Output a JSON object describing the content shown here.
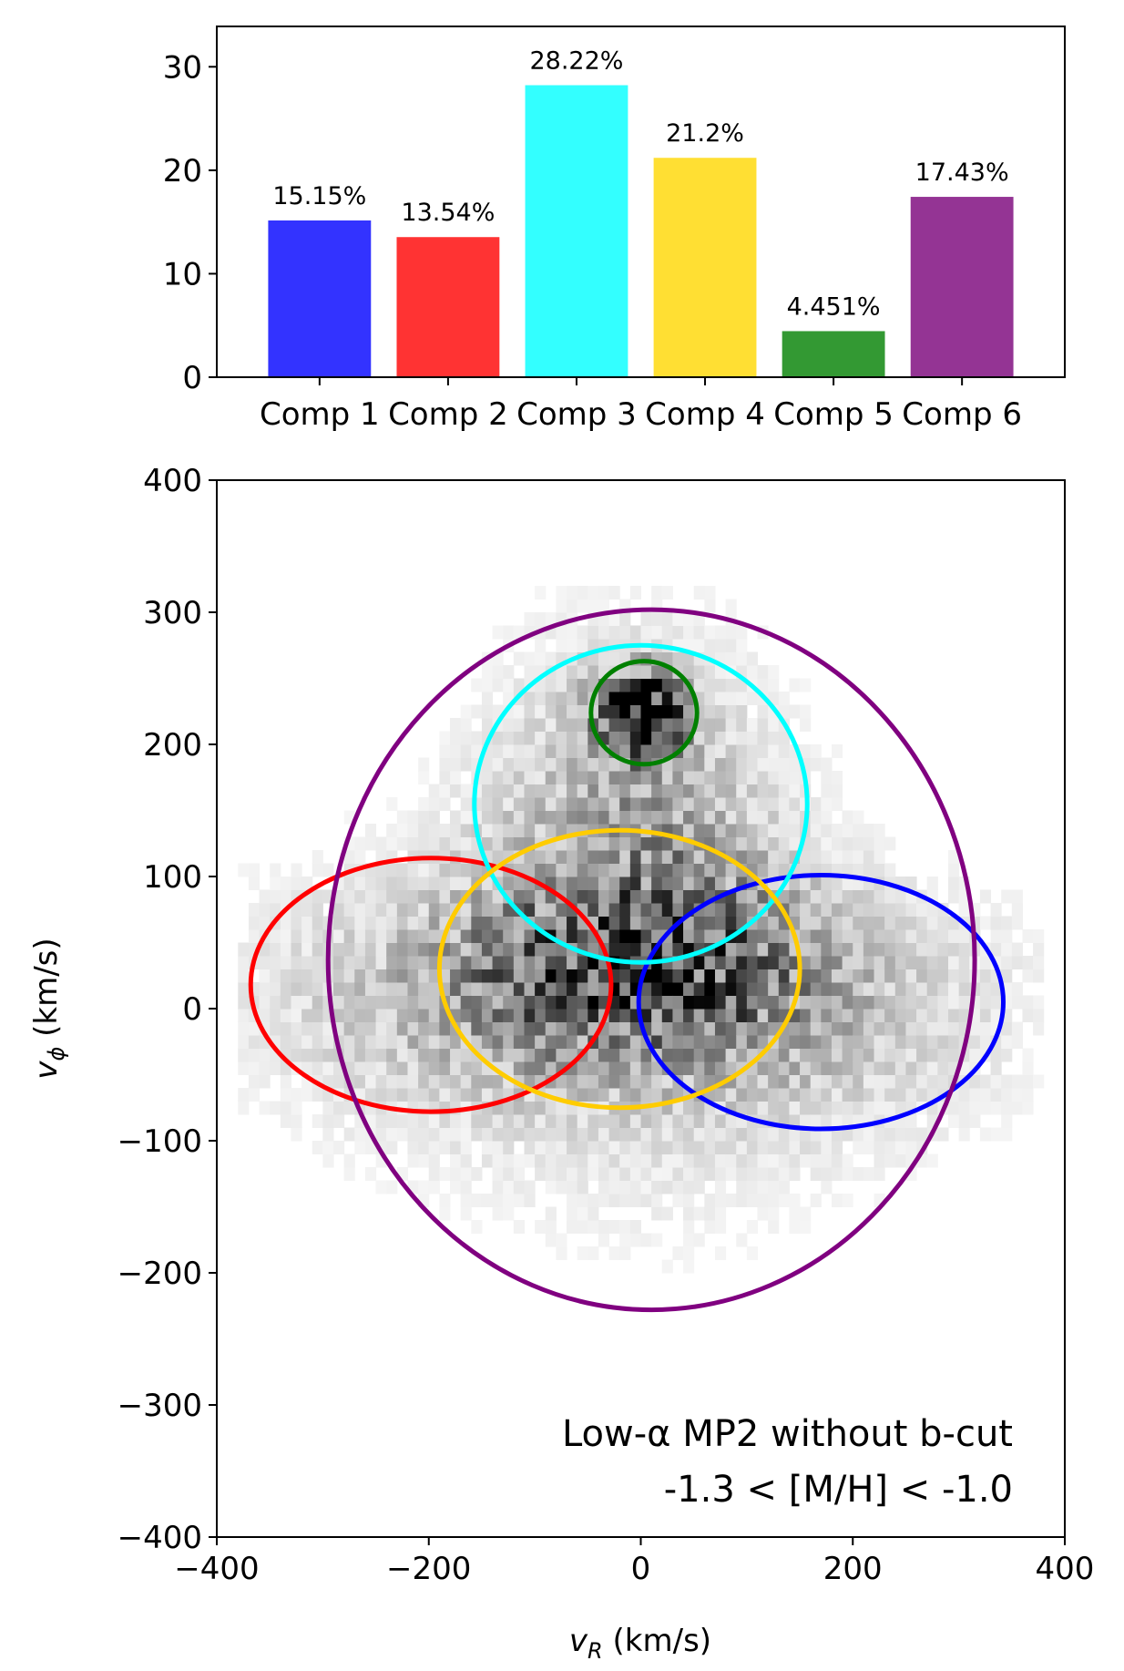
{
  "chart_data": [
    {
      "type": "bar",
      "categories": [
        "Comp 1",
        "Comp 2",
        "Comp 3",
        "Comp 4",
        "Comp 5",
        "Comp 6"
      ],
      "values": [
        15.15,
        13.54,
        28.22,
        21.2,
        4.451,
        17.43
      ],
      "data_labels": [
        "15.15%",
        "13.54%",
        "28.22%",
        "21.2%",
        "4.451%",
        "17.43%"
      ],
      "colors": [
        "#3333ff",
        "#ff3333",
        "#33ffff",
        "#ffdf33",
        "#339933",
        "#943494"
      ],
      "ylim": [
        0,
        33.9
      ],
      "yticks": [
        "0",
        "10",
        "20",
        "30"
      ],
      "ytick_values": [
        0,
        10,
        20,
        30
      ],
      "grid": false
    },
    {
      "type": "heatmap",
      "subtype": "2d-histogram with gaussian-component ellipses",
      "xlabel": "v_R (km/s)",
      "ylabel": "v_φ (km/s)",
      "xlim": [
        -400,
        400
      ],
      "ylim": [
        -400,
        400
      ],
      "xticks": [
        "−400",
        "−200",
        "0",
        "200",
        "400"
      ],
      "xtick_values": [
        -400,
        -200,
        0,
        200,
        400
      ],
      "yticks": [
        "−400",
        "−300",
        "−200",
        "−100",
        "0",
        "100",
        "200",
        "300",
        "400"
      ],
      "ytick_values": [
        -400,
        -300,
        -200,
        -100,
        0,
        100,
        200,
        300,
        400
      ],
      "colormap": "greys",
      "grid": false,
      "annotation": [
        "Low-α MP2 without b-cut",
        "-1.3 < [M/H] < -1.0"
      ],
      "annotation_placement": "bottom-right",
      "ellipses": [
        {
          "component": "Comp 1",
          "color": "#0000ff",
          "center": [
            170,
            5
          ],
          "half_width": 172,
          "half_height": 96
        },
        {
          "component": "Comp 2",
          "color": "#ff0000",
          "center": [
            -198,
            18
          ],
          "half_width": 170,
          "half_height": 96
        },
        {
          "component": "Comp 3",
          "color": "#00ffff",
          "center": [
            0,
            155
          ],
          "half_width": 157,
          "half_height": 120
        },
        {
          "component": "Comp 4",
          "color": "#ffcc00",
          "center": [
            -20,
            30
          ],
          "half_width": 170,
          "half_height": 105
        },
        {
          "component": "Comp 5",
          "color": "#008000",
          "center": [
            3,
            224
          ],
          "half_width": 50,
          "half_height": 39
        },
        {
          "component": "Comp 6",
          "color": "#800080",
          "center": [
            10,
            37
          ],
          "half_width": 305,
          "half_height": 265
        }
      ],
      "density_blobs": [
        {
          "x": 0,
          "y": 225,
          "sx": 28,
          "sy": 22,
          "w": 1.0
        },
        {
          "x": -10,
          "y": 130,
          "sx": 90,
          "sy": 90,
          "w": 0.38
        },
        {
          "x": -70,
          "y": 25,
          "sx": 80,
          "sy": 50,
          "w": 0.42
        },
        {
          "x": 80,
          "y": 30,
          "sx": 70,
          "sy": 50,
          "w": 0.36
        },
        {
          "x": -210,
          "y": 10,
          "sx": 120,
          "sy": 65,
          "w": 0.22
        },
        {
          "x": 185,
          "y": 5,
          "sx": 120,
          "sy": 65,
          "w": 0.22
        },
        {
          "x": 0,
          "y": -80,
          "sx": 140,
          "sy": 80,
          "w": 0.08
        }
      ]
    }
  ]
}
